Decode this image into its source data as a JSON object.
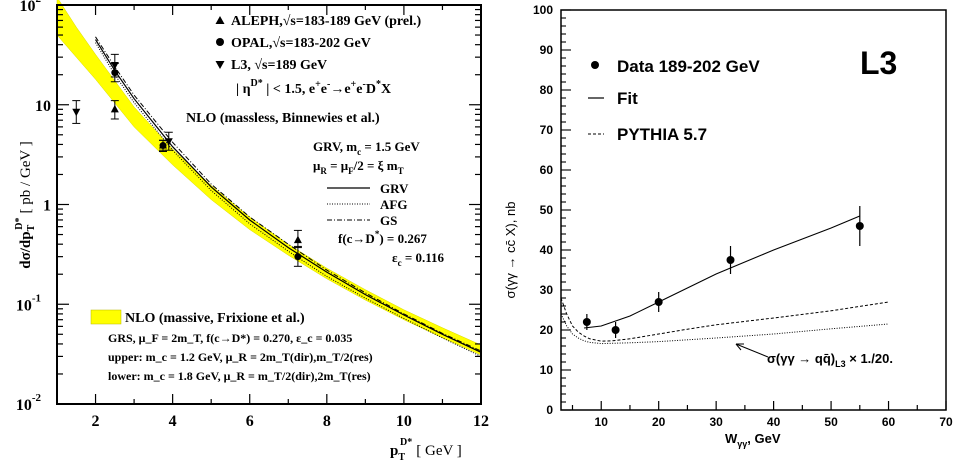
{
  "chart_data": [
    {
      "type": "line",
      "xlabel": "p",
      "xlabel_sup": "D*",
      "xlabel_sub": "T",
      "xlabel_unit": "[ GeV ]",
      "ylabel": "dσ/dp",
      "ylabel_sub": "T",
      "ylabel_sup": "D*",
      "ylabel_unit": "[ pb / GeV ]",
      "xlim": [
        1,
        12
      ],
      "ylim": [
        0.01,
        100
      ],
      "yscale": "log",
      "xticks": [
        "2",
        "4",
        "6",
        "8",
        "10",
        "12"
      ],
      "yticks": [
        {
          "label": "10",
          "sup": "2",
          "value": 100
        },
        {
          "label": "10",
          "sup": "",
          "value": 10
        },
        {
          "label": "1",
          "sup": "",
          "value": 1
        },
        {
          "label": "10",
          "sup": "-1",
          "value": 0.1
        },
        {
          "label": "10",
          "sup": "-2",
          "value": 0.01
        }
      ],
      "legend_points": [
        {
          "marker": "triangle-up",
          "text": "ALEPH,√s=183-189 GeV (prel.)"
        },
        {
          "marker": "circle",
          "text": "OPAL,√s=183-202 GeV"
        },
        {
          "marker": "triangle-down",
          "text": "L3, √s=189 GeV"
        }
      ],
      "cut_text": "| η",
      "cut_sup": "D*",
      "cut_text2": " | < 1.5, e",
      "cut_text3": "e",
      "cut_text4": "→e",
      "cut_text5": "e",
      "cut_text6": "D",
      "cut_text7": "X",
      "nlo_massless_title": "NLO (massless, Binnewies et al.)",
      "massless_params": [
        "GRV, m",
        "c",
        " = 1.5 GeV"
      ],
      "massless_scale": [
        "μ",
        "R",
        " = μ",
        "F",
        "/2 = ξ m",
        "T"
      ],
      "line_legend": [
        {
          "style": "solid",
          "label": "GRV"
        },
        {
          "style": "dotted",
          "label": "AFG"
        },
        {
          "style": "dashdot",
          "label": "GS"
        }
      ],
      "frag_text": [
        "f(c→D",
        "*",
        ") = 0.267"
      ],
      "eps_text": [
        "ε",
        "c",
        " = 0.116"
      ],
      "nlo_massive_title": "NLO (massive, Frixione et al.)",
      "massive_line1": "GRS, μ_F = 2m_T, f(c→D*) = 0.270, ε_c = 0.035",
      "massive_line2": "upper: m_c = 1.2 GeV,  μ_R = 2m_T(dir),m_T/2(res)",
      "massive_line3": "lower: m_c = 1.8 GeV,  μ_R = m_T/2(dir),2m_T(res)",
      "band_color": "#ffff00",
      "series": [
        {
          "name": "ALEPH,√s=183-189 GeV (prel.)",
          "marker": "triangle-up",
          "x": [
            2.5,
            3.75,
            7.25
          ],
          "y": [
            9,
            3.9,
            0.44
          ],
          "yerr_lo": [
            7.2,
            3.4,
            0.37
          ],
          "yerr_hi": [
            11,
            4.4,
            0.55
          ]
        },
        {
          "name": "OPAL,√s=183-202 GeV",
          "marker": "circle",
          "x": [
            2.5,
            3.75,
            7.25
          ],
          "y": [
            21,
            3.9,
            0.3
          ],
          "yerr_lo": [
            17,
            3.5,
            0.24
          ],
          "yerr_hi": [
            26,
            4.4,
            0.38
          ]
        },
        {
          "name": "L3, √s=189 GeV",
          "marker": "triangle-down",
          "x": [
            1.5,
            2.5,
            3.9
          ],
          "y": [
            8.5,
            25,
            4.3
          ],
          "yerr_lo": [
            6.5,
            19,
            3.5
          ],
          "yerr_hi": [
            11,
            32,
            5.3
          ]
        },
        {
          "name": "GRV",
          "style": "solid",
          "x": [
            2,
            2.5,
            3,
            4,
            5,
            6,
            7,
            8,
            9,
            10,
            11,
            12
          ],
          "y": [
            45,
            22,
            11.5,
            3.8,
            1.5,
            0.7,
            0.37,
            0.21,
            0.125,
            0.078,
            0.05,
            0.033
          ]
        },
        {
          "name": "AFG",
          "style": "dotted",
          "x": [
            2,
            2.5,
            3,
            4,
            5,
            6,
            7,
            8,
            9,
            10,
            11,
            12
          ],
          "y": [
            42,
            20,
            10.5,
            3.5,
            1.38,
            0.64,
            0.34,
            0.19,
            0.115,
            0.072,
            0.046,
            0.03
          ]
        },
        {
          "name": "GS",
          "style": "dashdot",
          "x": [
            2,
            2.5,
            3,
            4,
            5,
            6,
            7,
            8,
            9,
            10,
            11,
            12
          ],
          "y": [
            48,
            24,
            12.5,
            4.2,
            1.6,
            0.75,
            0.4,
            0.22,
            0.13,
            0.08,
            0.051,
            0.034
          ]
        },
        {
          "name": "NLO massive upper",
          "x": [
            1,
            1.5,
            2,
            3,
            4,
            5,
            6,
            7,
            8,
            9,
            10,
            11,
            12
          ],
          "y": [
            120,
            60,
            32,
            9.5,
            3.6,
            1.55,
            0.75,
            0.4,
            0.23,
            0.14,
            0.088,
            0.058,
            0.039
          ]
        },
        {
          "name": "NLO massive lower",
          "x": [
            1,
            1.5,
            2,
            3,
            4,
            5,
            6,
            7,
            8,
            9,
            10,
            11,
            12
          ],
          "y": [
            50,
            30,
            18,
            6.0,
            2.5,
            1.12,
            0.56,
            0.31,
            0.18,
            0.11,
            0.07,
            0.046,
            0.031
          ]
        }
      ]
    },
    {
      "type": "line",
      "xlabel": "W",
      "xlabel_sub": "γγ",
      "xlabel_unit": ", GeV",
      "ylabel": "σ(γγ → cc̄ X), nb",
      "xlim": [
        3,
        70
      ],
      "ylim": [
        0,
        100
      ],
      "xticks": [
        "10",
        "20",
        "30",
        "40",
        "50",
        "60",
        "70"
      ],
      "yticks": [
        "0",
        "10",
        "20",
        "30",
        "40",
        "50",
        "60",
        "70",
        "80",
        "90",
        "100"
      ],
      "experiment_label": "L3",
      "legend": [
        {
          "marker": "circle",
          "text": "Data 189-202 GeV"
        },
        {
          "style": "solid",
          "text": "Fit"
        },
        {
          "style": "dashed",
          "text": "PYTHIA 5.7"
        }
      ],
      "annotation": "σ(γγ → qq̄)",
      "annotation_sub": "L3",
      "annotation_tail": " × 1./20.",
      "series": [
        {
          "name": "Data 189-202 GeV",
          "marker": "circle",
          "x": [
            7.5,
            12.5,
            20,
            32.5,
            55
          ],
          "y": [
            22,
            20,
            27,
            37.5,
            46
          ],
          "yerr": [
            2,
            2,
            2.5,
            3.5,
            5
          ]
        },
        {
          "name": "Fit",
          "style": "solid",
          "x": [
            7,
            10,
            15,
            20,
            30,
            40,
            50,
            55
          ],
          "y": [
            20.5,
            21,
            23.5,
            27,
            34,
            40,
            45.5,
            48.5
          ]
        },
        {
          "name": "PYTHIA 5.7",
          "style": "dashed",
          "x": [
            3,
            4,
            5,
            6,
            7,
            8,
            10,
            12,
            15,
            20,
            25,
            30,
            40,
            50,
            60
          ],
          "y": [
            28,
            24,
            21,
            19.5,
            18.5,
            17.8,
            17.2,
            17.3,
            17.8,
            19,
            20.2,
            21.3,
            23,
            24.8,
            27
          ]
        },
        {
          "name": "σ(γγ → qq̄)",
          "style": "dotted",
          "x": [
            3,
            4,
            5,
            6,
            7,
            8,
            10,
            15,
            20,
            30,
            40,
            50,
            60
          ],
          "y": [
            24,
            21,
            19,
            18,
            17.3,
            16.9,
            16.6,
            16.8,
            17.1,
            18,
            19,
            20.3,
            21.5
          ]
        }
      ]
    }
  ]
}
